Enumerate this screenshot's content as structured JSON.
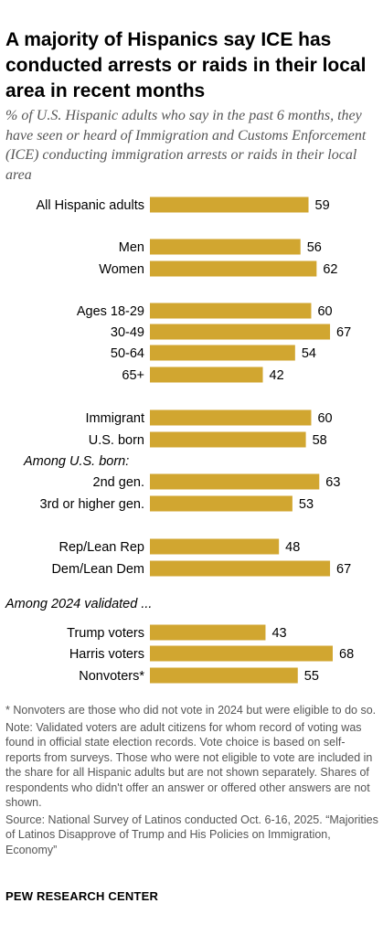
{
  "title": "A majority of Hispanics say ICE has conducted arrests or raids in their local area in recent months",
  "subtitle": "% of U.S. Hispanic adults who say in the past 6 months, they have seen or heard of Immigration and Customs Enforcement (ICE) conducting immigration arrests or raids in their local area",
  "colors": {
    "bar": "#D1A630",
    "text": "#000000",
    "muted": "#555555"
  },
  "chart_data": {
    "type": "bar",
    "orientation": "horizontal",
    "title": "A majority of Hispanics say ICE has conducted arrests or raids in their local area in recent months",
    "subtitle": "% of U.S. Hispanic adults who say in the past 6 months, they have seen or heard of Immigration and Customs Enforcement (ICE) conducting immigration arrests or raids in their local area",
    "xlim": [
      0,
      68
    ],
    "grid": false,
    "legend": "none",
    "group_labels": [
      {
        "text": "Among U.S. born:",
        "before": "2nd gen.",
        "indent": "label"
      },
      {
        "text": "Among 2024 validated ...",
        "before": "Trump voters",
        "indent": "left"
      }
    ],
    "categories": [
      "All Hispanic adults",
      "Men",
      "Women",
      "Ages 18-29",
      "30-49",
      "50-64",
      "65+",
      "Immigrant",
      "U.S. born",
      "2nd gen.",
      "3rd or higher gen.",
      "Rep/Lean Rep",
      "Dem/Lean Dem",
      "Trump voters",
      "Harris voters",
      "Nonvoters*"
    ],
    "values": [
      59,
      56,
      62,
      60,
      67,
      54,
      42,
      60,
      58,
      63,
      53,
      48,
      67,
      43,
      68,
      55
    ]
  },
  "footnotes": [
    "* Nonvoters are those who did not vote in 2024 but were eligible to do so.",
    "Note: Validated voters are adult citizens for whom record of voting was found in official state election records. Vote choice is based on self-reports from surveys. Those who were not eligible to vote are included in the share for all Hispanic adults but are not shown separately. Shares of respondents who didn't offer an answer or offered other answers are not shown.",
    "Source: National Survey of Latinos conducted Oct. 6-16, 2025. “Majorities of Latinos Disapprove of Trump and His Policies on Immigration, Economy”"
  ],
  "brand": "PEW RESEARCH CENTER"
}
